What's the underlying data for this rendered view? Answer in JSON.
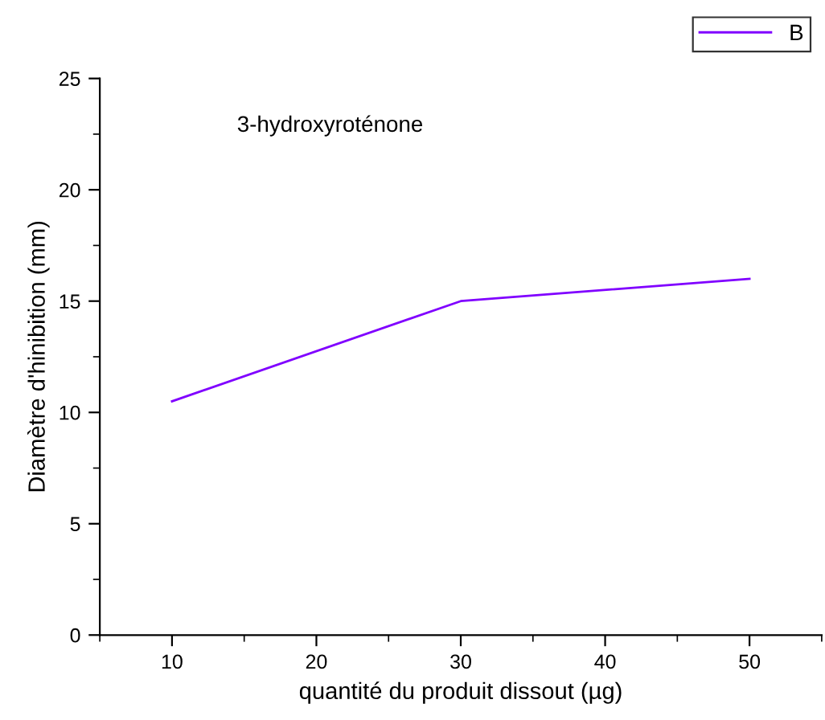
{
  "chart_data": {
    "type": "line",
    "xlabel": "quantité du produit dissout (µg)",
    "ylabel": "Diamètre d'hinibition (mm)",
    "annotations": [
      "3-hydroxyroténone"
    ],
    "x": [
      10,
      30,
      50
    ],
    "series": [
      {
        "name": "B",
        "color": "#8000ff",
        "values": [
          10.5,
          15,
          16
        ]
      }
    ],
    "xlim": [
      5,
      55
    ],
    "xticks": [
      10,
      20,
      30,
      40,
      50
    ],
    "ylim": [
      0,
      25
    ],
    "yticks": [
      0,
      5,
      10,
      15,
      20,
      25
    ],
    "grid": false,
    "legend": "top right",
    "marker": "none",
    "line_style": "solid"
  }
}
